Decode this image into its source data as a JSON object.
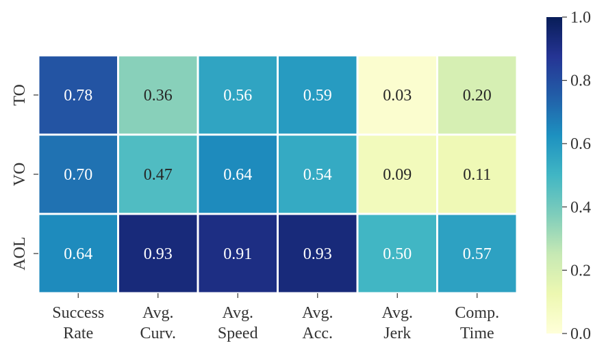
{
  "chart_data": {
    "type": "heatmap",
    "title": "",
    "xlabel": "",
    "ylabel": "",
    "x_categories": [
      [
        "Success",
        "Rate"
      ],
      [
        "Avg.",
        "Curv."
      ],
      [
        "Avg.",
        "Speed"
      ],
      [
        "Avg.",
        "Acc."
      ],
      [
        "Avg.",
        "Jerk"
      ],
      [
        "Comp.",
        "Time"
      ]
    ],
    "y_categories": [
      "TO",
      "VO",
      "AOL"
    ],
    "values": [
      [
        0.78,
        0.36,
        0.56,
        0.59,
        0.03,
        0.2
      ],
      [
        0.7,
        0.47,
        0.64,
        0.54,
        0.09,
        0.11
      ],
      [
        0.64,
        0.93,
        0.91,
        0.93,
        0.5,
        0.57
      ]
    ],
    "value_labels": [
      [
        "0.78",
        "0.36",
        "0.56",
        "0.59",
        "0.03",
        "0.20"
      ],
      [
        "0.70",
        "0.47",
        "0.64",
        "0.54",
        "0.09",
        "0.11"
      ],
      [
        "0.64",
        "0.93",
        "0.91",
        "0.93",
        "0.50",
        "0.57"
      ]
    ],
    "colormap": "YlGnBu",
    "vmin": 0.0,
    "vmax": 1.0,
    "colorbar_ticks": [
      "0.0",
      "0.2",
      "0.4",
      "0.6",
      "0.8",
      "1.0"
    ],
    "cell_separator_color": "#ffffff"
  }
}
